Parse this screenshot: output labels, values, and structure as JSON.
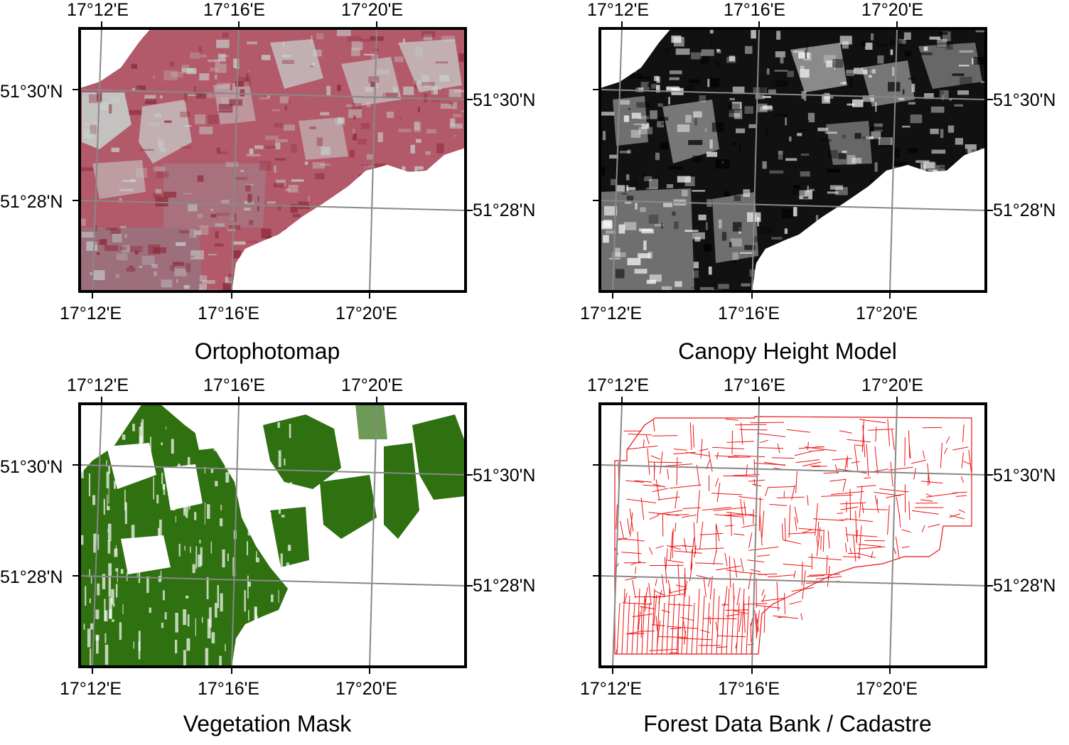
{
  "grid_labels": {
    "lon": [
      "17°12'E",
      "17°16'E",
      "17°20'E"
    ],
    "lat": [
      "51°30'N",
      "51°28'N"
    ]
  },
  "panels": [
    {
      "id": "ortho",
      "title": "Ortophotomap"
    },
    {
      "id": "chm",
      "title": "Canopy Height Model"
    },
    {
      "id": "veg",
      "title": "Vegetation Mask"
    },
    {
      "id": "fdb",
      "title": "Forest Data Bank / Cadastre"
    }
  ],
  "colors": {
    "ortho_fill": "#b25a6a",
    "ortho_light": "#c7d3d0",
    "chm_fill": "#111111",
    "chm_light": "#bdbdbd",
    "veg_fill": "#2f7010",
    "fdb_line": "#ee1111",
    "grid": "#888888",
    "frame": "#000000"
  }
}
